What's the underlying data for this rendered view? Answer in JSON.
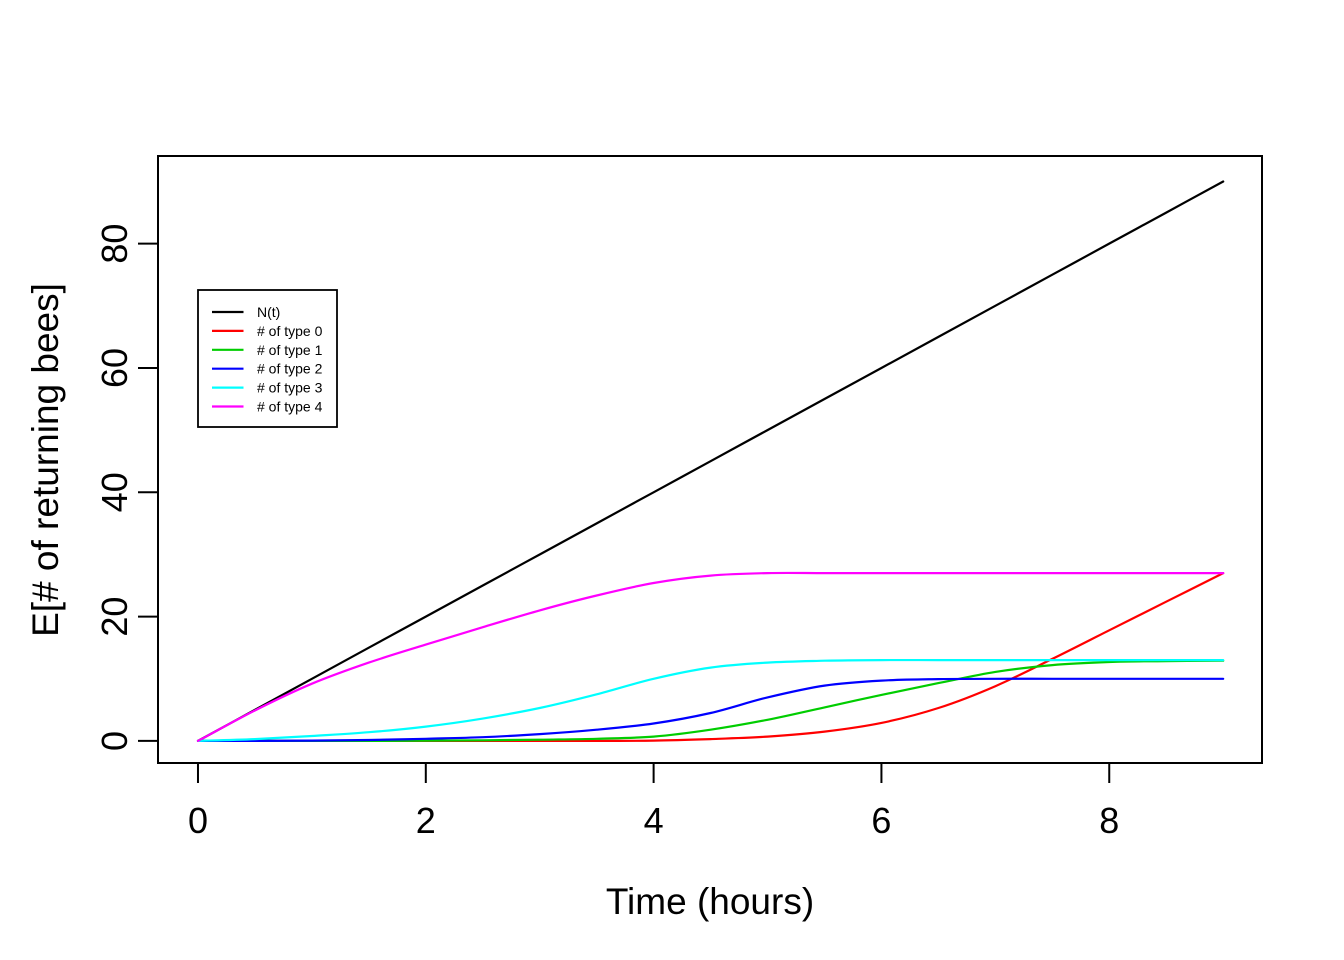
{
  "figure": {
    "background": "#ffffff",
    "axis_color": "#000000"
  },
  "chart_data": {
    "type": "line",
    "title": "",
    "xlabel": "Time (hours)",
    "ylabel": "E[# of returning bees]",
    "xlim": [
      -0.351,
      9.341
    ],
    "ylim": [
      -3.55,
      94.1
    ],
    "x_ticks": [
      0,
      2,
      4,
      6,
      8
    ],
    "y_ticks": [
      0,
      20,
      40,
      60,
      80
    ],
    "grid": false,
    "legend": {
      "position": "upper-left",
      "border": true,
      "entries": [
        "N(t)",
        "# of type 0",
        "# of type 1",
        "# of type 2",
        "# of type 3",
        "# of type 4"
      ]
    },
    "x": [
      0,
      0.5,
      1,
      1.5,
      2,
      2.5,
      3,
      3.5,
      4,
      4.5,
      5,
      5.5,
      6,
      6.5,
      7,
      7.5,
      8,
      8.5,
      9
    ],
    "series": [
      {
        "id": "n-t",
        "name": "N(t)",
        "color": "#000000",
        "values": [
          0,
          5,
          10,
          15,
          20,
          25,
          30,
          35,
          40,
          45,
          50,
          55,
          60,
          65,
          70,
          75,
          80,
          85,
          90
        ]
      },
      {
        "id": "type-0",
        "name": "# of type 0",
        "color": "#FF0000",
        "values": [
          0,
          0,
          0,
          0,
          0,
          0,
          0,
          0,
          0.05,
          0.3,
          0.7,
          1.5,
          2.9,
          5.3,
          8.8,
          13.2,
          17.8,
          22.4,
          27
        ]
      },
      {
        "id": "type-1",
        "name": "# of type 1",
        "color": "#00CD00",
        "values": [
          0,
          0,
          0,
          0,
          0.05,
          0.1,
          0.2,
          0.35,
          0.7,
          1.8,
          3.4,
          5.4,
          7.4,
          9.3,
          11.1,
          12.2,
          12.7,
          12.85,
          12.9
        ]
      },
      {
        "id": "type-2",
        "name": "# of type 2",
        "color": "#0000FF",
        "values": [
          0,
          0,
          0.05,
          0.15,
          0.35,
          0.6,
          1.1,
          1.8,
          2.8,
          4.5,
          7,
          8.9,
          9.7,
          9.95,
          10,
          10,
          10,
          10,
          10
        ]
      },
      {
        "id": "type-3",
        "name": "# of type 3",
        "color": "#00FFFF",
        "values": [
          0,
          0.3,
          0.8,
          1.4,
          2.3,
          3.6,
          5.3,
          7.5,
          10,
          11.8,
          12.6,
          12.9,
          13,
          13,
          13,
          13,
          13,
          13,
          13
        ]
      },
      {
        "id": "type-4",
        "name": "# of type 4",
        "color": "#FF00FF",
        "values": [
          0,
          4.9,
          9.2,
          12.6,
          15.5,
          18.3,
          21,
          23.4,
          25.4,
          26.6,
          27,
          27,
          27,
          27,
          27,
          27,
          27,
          27,
          27
        ]
      }
    ]
  }
}
